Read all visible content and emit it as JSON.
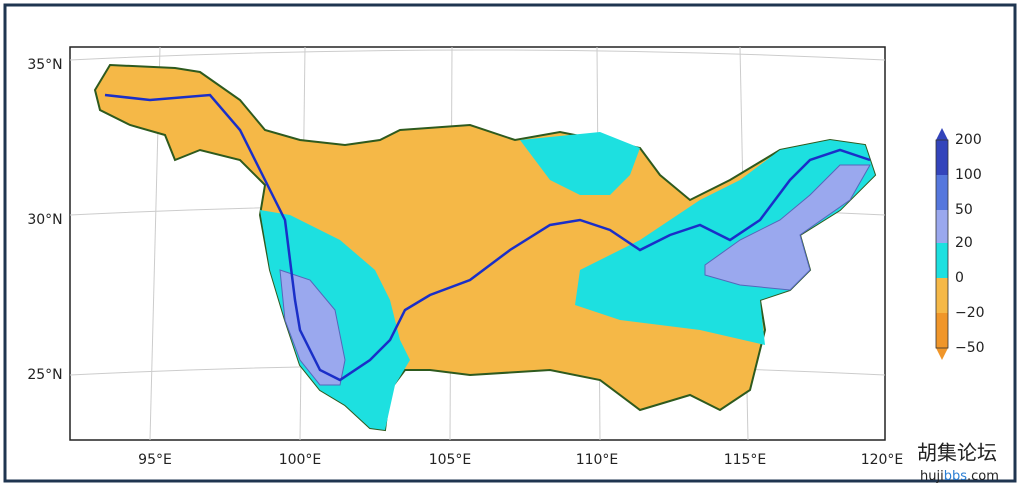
{
  "map": {
    "lat_labels": [
      "35°N",
      "30°N",
      "25°N"
    ],
    "lon_labels": [
      "95°E",
      "100°E",
      "105°E",
      "110°E",
      "115°E",
      "120°E"
    ],
    "colorbar": {
      "labels": [
        "200",
        "100",
        "50",
        "20",
        "0",
        "−20",
        "−50"
      ]
    },
    "watermark": {
      "title": "胡集论坛",
      "url_prefix": "huji",
      "url_highlight": "bbs",
      "url_suffix": ".com"
    }
  }
}
